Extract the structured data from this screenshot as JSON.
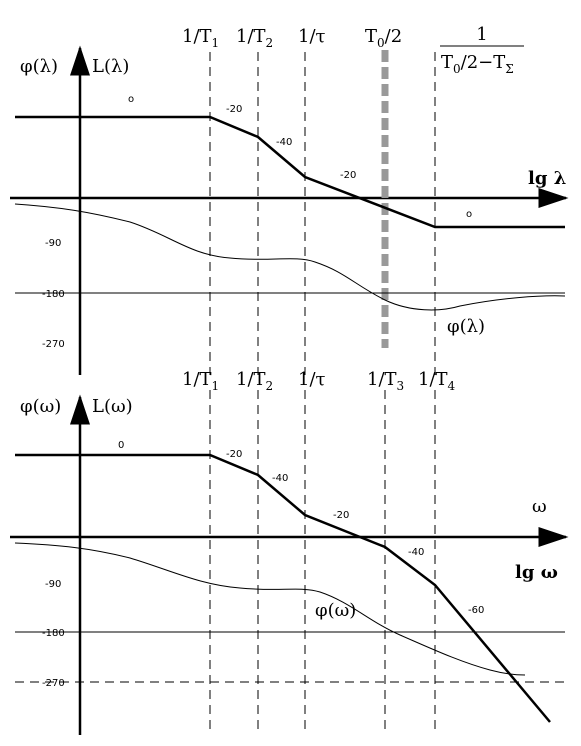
{
  "top": {
    "phi_label": "φ(λ)",
    "l_label": "L(λ)",
    "freqs": [
      {
        "main": "1/T",
        "sub": "1"
      },
      {
        "main": "1/T",
        "sub": "2"
      },
      {
        "main": "1/τ"
      },
      {
        "main": "T",
        "sub": "0",
        "tail": "/2"
      }
    ],
    "last_freq": {
      "numerator": "1",
      "den_main": "T",
      "den_sub": "0",
      "den_mid": "/2−T",
      "den_sub2": "Σ"
    },
    "axis_label": "lg λ",
    "slopes": [
      "o",
      "-20",
      "-40",
      "-20",
      "o"
    ],
    "phase_ticks": [
      "-90",
      "-180",
      "-270"
    ],
    "phase_curve_label": "φ(λ)"
  },
  "bottom": {
    "phi_label": "φ(ω)",
    "l_label": "L(ω)",
    "freqs": [
      {
        "main": "1/T",
        "sub": "1"
      },
      {
        "main": "1/T",
        "sub": "2"
      },
      {
        "main": "1/τ"
      },
      {
        "main": "1/T",
        "sub": "3"
      },
      {
        "main": "1/T",
        "sub": "4"
      }
    ],
    "omega_label": "ω",
    "axis_label": "lg ω",
    "slopes": [
      "0",
      "-20",
      "-40",
      "-20",
      "-40",
      "-60"
    ],
    "phase_ticks": [
      "-90",
      "-180",
      "-270"
    ],
    "phase_curve_label": "φ(ω)"
  }
}
